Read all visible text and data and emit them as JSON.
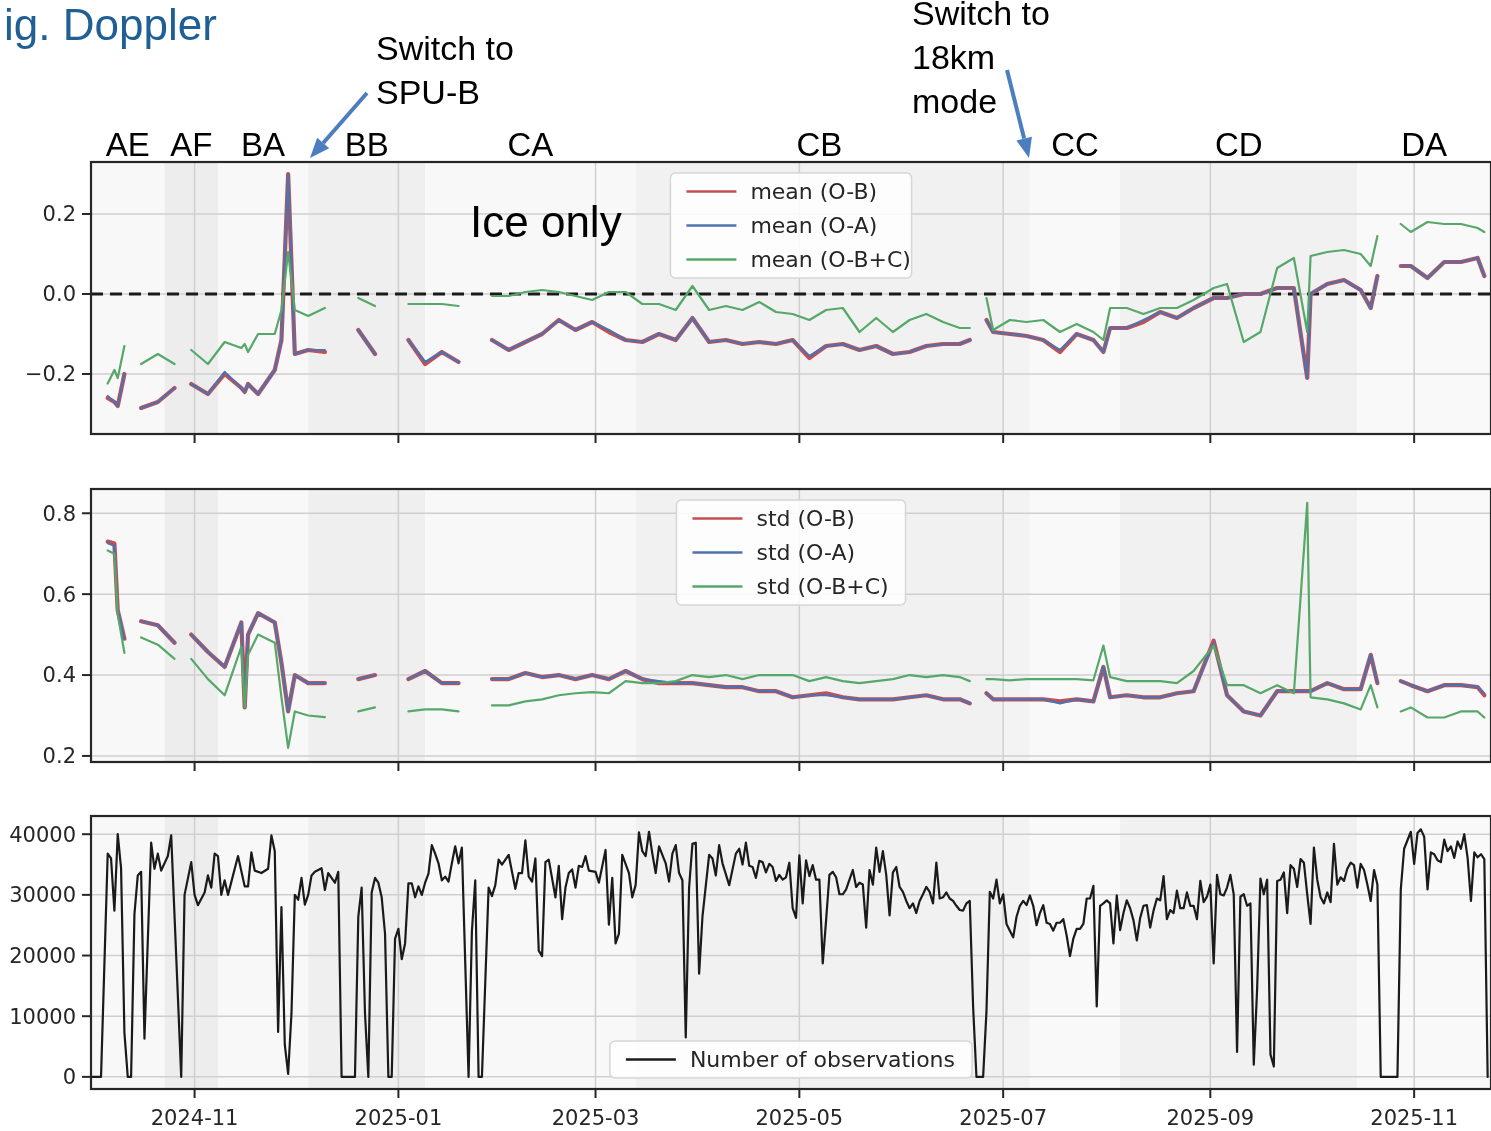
{
  "chart_data": [
    {
      "type": "line",
      "title": "ig. Doppler",
      "grid": true,
      "legend": "top",
      "tick_labels": "y",
      "line_style": "solid",
      "xlim": [
        "2024-10-01",
        "2025-11-24"
      ],
      "ylim": [
        -0.35,
        0.33
      ],
      "xticks": [
        {
          "value": "2024-11-01",
          "label": null
        },
        {
          "value": "2025-01-01",
          "label": null
        },
        {
          "value": "2025-03-01",
          "label": null
        },
        {
          "value": "2025-05-01",
          "label": null
        },
        {
          "value": "2025-07-01",
          "label": null
        },
        {
          "value": "2025-09-01",
          "label": null
        },
        {
          "value": "2025-11-01",
          "label": null
        }
      ],
      "yticks": [
        {
          "value": -0.2,
          "label": "−0.2"
        },
        {
          "value": 0,
          "label": "0.0"
        },
        {
          "value": 0.2,
          "label": "0.2"
        }
      ],
      "ref_lines": [
        {
          "axis": "y",
          "value": 0,
          "color": "#1a1a1a",
          "line_style": "dashed"
        }
      ],
      "bands": [
        {
          "axis": "x",
          "from": "2024-10-01",
          "to": "2024-10-23",
          "label": "AE",
          "color": "#f8f8f8"
        },
        {
          "axis": "x",
          "from": "2024-10-23",
          "to": "2024-11-08",
          "label": "AF",
          "color": "#ededed"
        },
        {
          "axis": "x",
          "from": "2024-11-08",
          "to": "2024-12-05",
          "label": "BA",
          "color": "#f8f8f8"
        },
        {
          "axis": "x",
          "from": "2024-12-05",
          "to": "2025-01-09",
          "label": "BB",
          "color": "#efefef"
        },
        {
          "axis": "x",
          "from": "2025-01-09",
          "to": "2025-03-13",
          "label": "CA",
          "color": "#f8f8f8"
        },
        {
          "axis": "x",
          "from": "2025-03-13",
          "to": "2025-07-01",
          "label": "CB",
          "color": "#f1f1f1"
        },
        {
          "axis": "x",
          "from": "2025-07-01",
          "to": "2025-07-09",
          "color": "#f3f3f3"
        },
        {
          "axis": "x",
          "from": "2025-07-09",
          "to": "2025-08-05",
          "label": "CC",
          "color": "#f9f9f9"
        },
        {
          "axis": "x",
          "from": "2025-08-05",
          "to": "2025-10-15",
          "label": "CD",
          "color": "#f1f1f1"
        },
        {
          "axis": "x",
          "from": "2025-10-15",
          "to": "2025-11-24",
          "label": "DA",
          "color": "#f9f9f9"
        }
      ],
      "annotations": [
        "Switch to SPU-B",
        "Switch to 18km mode",
        "Ice only"
      ],
      "x": [
        "2024-10-06",
        "2024-10-08",
        "2024-10-09",
        "2024-10-11",
        "2024-10-13",
        "2024-10-16",
        "2024-10-21",
        "2024-10-26",
        "2024-10-28",
        "2024-10-31",
        "2024-11-05",
        "2024-11-10",
        "2024-11-15",
        "2024-11-16",
        "2024-11-17",
        "2024-11-20",
        "2024-11-25",
        "2024-11-27",
        "2024-11-29",
        "2024-12-01",
        "2024-12-05",
        "2024-12-10",
        "2024-12-15",
        "2024-12-20",
        "2024-12-25",
        "2024-12-30",
        "2025-01-04",
        "2025-01-09",
        "2025-01-14",
        "2025-01-19",
        "2025-01-24",
        "2025-01-29",
        "2025-02-03",
        "2025-02-08",
        "2025-02-13",
        "2025-02-18",
        "2025-02-23",
        "2025-02-28",
        "2025-03-05",
        "2025-03-10",
        "2025-03-15",
        "2025-03-20",
        "2025-03-25",
        "2025-03-30",
        "2025-04-04",
        "2025-04-09",
        "2025-04-14",
        "2025-04-19",
        "2025-04-24",
        "2025-04-29",
        "2025-05-04",
        "2025-05-09",
        "2025-05-14",
        "2025-05-19",
        "2025-05-24",
        "2025-05-29",
        "2025-06-03",
        "2025-06-08",
        "2025-06-13",
        "2025-06-18",
        "2025-06-21",
        "2025-06-23",
        "2025-06-26",
        "2025-06-28",
        "2025-07-03",
        "2025-07-08",
        "2025-07-13",
        "2025-07-18",
        "2025-07-23",
        "2025-07-28",
        "2025-07-31",
        "2025-08-02",
        "2025-08-07",
        "2025-08-12",
        "2025-08-17",
        "2025-08-22",
        "2025-08-27",
        "2025-09-02",
        "2025-09-06",
        "2025-09-11",
        "2025-09-16",
        "2025-09-21",
        "2025-09-26",
        "2025-09-30",
        "2025-10-01",
        "2025-10-06",
        "2025-10-11",
        "2025-10-16",
        "2025-10-19",
        "2025-10-21",
        "2025-10-25",
        "2025-10-28",
        "2025-10-31",
        "2025-11-05",
        "2025-11-10",
        "2025-11-15",
        "2025-11-20",
        "2025-11-22"
      ],
      "series": [
        {
          "name": "mean (O-B)",
          "color": "#c44e52",
          "values": [
            -0.26,
            -0.27,
            -0.28,
            -0.2,
            null,
            -0.285,
            -0.27,
            -0.235,
            null,
            -0.225,
            -0.25,
            -0.2,
            -0.235,
            -0.245,
            -0.225,
            -0.25,
            -0.19,
            -0.115,
            0.3,
            -0.15,
            -0.14,
            -0.145,
            null,
            -0.09,
            -0.15,
            null,
            -0.115,
            -0.175,
            -0.145,
            -0.17,
            null,
            -0.115,
            -0.14,
            -0.12,
            -0.1,
            -0.065,
            -0.09,
            -0.07,
            -0.095,
            -0.115,
            -0.12,
            -0.1,
            -0.115,
            -0.06,
            -0.12,
            -0.115,
            -0.125,
            -0.12,
            -0.125,
            -0.115,
            -0.16,
            -0.13,
            -0.125,
            -0.14,
            -0.13,
            -0.15,
            -0.145,
            -0.13,
            -0.125,
            -0.125,
            -0.115,
            null,
            -0.065,
            -0.095,
            -0.1,
            -0.105,
            -0.115,
            -0.145,
            -0.1,
            -0.115,
            -0.145,
            -0.085,
            -0.085,
            -0.07,
            -0.045,
            -0.06,
            -0.035,
            -0.01,
            -0.01,
            0.0,
            0.0,
            0.015,
            0.015,
            -0.21,
            0.0,
            0.025,
            0.035,
            0.01,
            -0.035,
            0.045,
            null,
            0.07,
            0.07,
            0.04,
            0.08,
            0.08,
            0.09,
            0.045
          ]
        },
        {
          "name": "mean (O-A)",
          "color": "#4c72b0",
          "values": [
            -0.255,
            -0.27,
            -0.28,
            -0.2,
            null,
            -0.285,
            -0.27,
            -0.235,
            null,
            -0.225,
            -0.25,
            -0.195,
            -0.235,
            -0.245,
            -0.225,
            -0.25,
            -0.19,
            -0.115,
            0.3,
            -0.15,
            -0.14,
            -0.14,
            null,
            -0.09,
            -0.15,
            null,
            -0.115,
            -0.17,
            -0.145,
            -0.17,
            null,
            -0.115,
            -0.14,
            -0.12,
            -0.1,
            -0.065,
            -0.09,
            -0.07,
            -0.09,
            -0.115,
            -0.12,
            -0.1,
            -0.115,
            -0.06,
            -0.12,
            -0.115,
            -0.125,
            -0.12,
            -0.125,
            -0.115,
            -0.155,
            -0.13,
            -0.125,
            -0.14,
            -0.13,
            -0.15,
            -0.145,
            -0.13,
            -0.125,
            -0.125,
            -0.115,
            null,
            -0.065,
            -0.095,
            -0.1,
            -0.105,
            -0.115,
            -0.14,
            -0.1,
            -0.115,
            -0.145,
            -0.085,
            -0.085,
            -0.065,
            -0.045,
            -0.06,
            -0.035,
            -0.01,
            -0.01,
            0.0,
            0.0,
            0.015,
            0.015,
            -0.21,
            0.0,
            0.025,
            0.035,
            0.01,
            -0.035,
            0.045,
            null,
            0.07,
            0.07,
            0.04,
            0.08,
            0.08,
            0.09,
            0.045
          ]
        },
        {
          "name": "mean (O-B+C)",
          "color": "#55a868",
          "values": [
            -0.224,
            -0.19,
            -0.21,
            -0.13,
            null,
            -0.175,
            -0.15,
            -0.175,
            null,
            -0.14,
            -0.175,
            -0.12,
            -0.135,
            -0.125,
            -0.145,
            -0.1,
            -0.1,
            -0.04,
            0.105,
            -0.04,
            -0.055,
            -0.035,
            null,
            -0.01,
            -0.03,
            null,
            -0.025,
            -0.025,
            -0.025,
            -0.03,
            null,
            -0.005,
            -0.005,
            0.005,
            0.01,
            0.005,
            -0.005,
            -0.015,
            0.005,
            0.005,
            -0.025,
            -0.025,
            -0.04,
            0.02,
            -0.04,
            -0.03,
            -0.04,
            -0.02,
            -0.045,
            -0.05,
            -0.065,
            -0.04,
            -0.035,
            -0.095,
            -0.06,
            -0.095,
            -0.065,
            -0.05,
            -0.07,
            -0.085,
            -0.085,
            null,
            -0.01,
            -0.09,
            -0.065,
            -0.07,
            -0.065,
            -0.095,
            -0.075,
            -0.095,
            -0.115,
            -0.035,
            -0.035,
            -0.05,
            -0.035,
            -0.035,
            -0.015,
            0.015,
            0.025,
            -0.12,
            -0.095,
            0.065,
            0.09,
            -0.095,
            0.095,
            0.105,
            0.11,
            0.1,
            0.07,
            0.145,
            null,
            0.175,
            0.155,
            0.18,
            0.175,
            0.175,
            0.165,
            0.155
          ]
        }
      ]
    },
    {
      "type": "line",
      "grid": true,
      "legend": "top",
      "tick_labels": "y",
      "line_style": "solid",
      "xlim": [
        "2024-10-01",
        "2025-11-24"
      ],
      "ylim": [
        0.185,
        0.86
      ],
      "xticks": [
        {
          "value": "2024-11-01",
          "label": null
        },
        {
          "value": "2025-01-01",
          "label": null
        },
        {
          "value": "2025-03-01",
          "label": null
        },
        {
          "value": "2025-05-01",
          "label": null
        },
        {
          "value": "2025-07-01",
          "label": null
        },
        {
          "value": "2025-09-01",
          "label": null
        },
        {
          "value": "2025-11-01",
          "label": null
        }
      ],
      "yticks": [
        0.2,
        0.4,
        0.6,
        0.8
      ],
      "bands": [
        {
          "axis": "x",
          "from": "2024-10-01",
          "to": "2024-10-23",
          "color": "#f8f8f8"
        },
        {
          "axis": "x",
          "from": "2024-10-23",
          "to": "2024-11-08",
          "color": "#ededed"
        },
        {
          "axis": "x",
          "from": "2024-11-08",
          "to": "2024-12-05",
          "color": "#f8f8f8"
        },
        {
          "axis": "x",
          "from": "2024-12-05",
          "to": "2025-01-09",
          "color": "#efefef"
        },
        {
          "axis": "x",
          "from": "2025-01-09",
          "to": "2025-03-13",
          "color": "#f8f8f8"
        },
        {
          "axis": "x",
          "from": "2025-03-13",
          "to": "2025-07-01",
          "color": "#f1f1f1"
        },
        {
          "axis": "x",
          "from": "2025-07-01",
          "to": "2025-07-09",
          "color": "#f3f3f3"
        },
        {
          "axis": "x",
          "from": "2025-07-09",
          "to": "2025-08-05",
          "color": "#f9f9f9"
        },
        {
          "axis": "x",
          "from": "2025-08-05",
          "to": "2025-10-15",
          "color": "#f1f1f1"
        },
        {
          "axis": "x",
          "from": "2025-10-15",
          "to": "2025-11-24",
          "color": "#f9f9f9"
        }
      ],
      "x": [
        "2024-10-06",
        "2024-10-08",
        "2024-10-09",
        "2024-10-11",
        "2024-10-13",
        "2024-10-16",
        "2024-10-21",
        "2024-10-26",
        "2024-10-28",
        "2024-10-31",
        "2024-11-05",
        "2024-11-10",
        "2024-11-15",
        "2024-11-16",
        "2024-11-17",
        "2024-11-20",
        "2024-11-25",
        "2024-11-27",
        "2024-11-29",
        "2024-12-01",
        "2024-12-05",
        "2024-12-10",
        "2024-12-15",
        "2024-12-20",
        "2024-12-25",
        "2024-12-30",
        "2025-01-04",
        "2025-01-09",
        "2025-01-14",
        "2025-01-19",
        "2025-01-24",
        "2025-01-29",
        "2025-02-03",
        "2025-02-08",
        "2025-02-13",
        "2025-02-18",
        "2025-02-23",
        "2025-02-28",
        "2025-03-05",
        "2025-03-10",
        "2025-03-15",
        "2025-03-20",
        "2025-03-25",
        "2025-03-30",
        "2025-04-04",
        "2025-04-09",
        "2025-04-14",
        "2025-04-19",
        "2025-04-24",
        "2025-04-29",
        "2025-05-04",
        "2025-05-09",
        "2025-05-14",
        "2025-05-19",
        "2025-05-24",
        "2025-05-29",
        "2025-06-03",
        "2025-06-08",
        "2025-06-13",
        "2025-06-18",
        "2025-06-21",
        "2025-06-23",
        "2025-06-26",
        "2025-06-28",
        "2025-07-03",
        "2025-07-08",
        "2025-07-13",
        "2025-07-18",
        "2025-07-23",
        "2025-07-28",
        "2025-07-31",
        "2025-08-02",
        "2025-08-07",
        "2025-08-12",
        "2025-08-17",
        "2025-08-22",
        "2025-08-27",
        "2025-09-02",
        "2025-09-06",
        "2025-09-11",
        "2025-09-16",
        "2025-09-21",
        "2025-09-26",
        "2025-09-30",
        "2025-10-01",
        "2025-10-06",
        "2025-10-11",
        "2025-10-16",
        "2025-10-19",
        "2025-10-21",
        "2025-10-25",
        "2025-10-28",
        "2025-10-31",
        "2025-11-05",
        "2025-11-10",
        "2025-11-15",
        "2025-11-20",
        "2025-11-22"
      ],
      "series": [
        {
          "name": "std (O-B)",
          "color": "#c44e52",
          "values": [
            0.73,
            0.725,
            0.56,
            0.49,
            null,
            0.533,
            0.523,
            0.48,
            null,
            0.5,
            0.457,
            0.42,
            0.53,
            0.32,
            0.5,
            0.553,
            0.53,
            0.43,
            0.31,
            0.4,
            0.38,
            0.38,
            null,
            0.39,
            0.4,
            null,
            0.39,
            0.41,
            0.38,
            0.38,
            null,
            0.39,
            0.39,
            0.405,
            0.395,
            0.4,
            0.39,
            0.4,
            0.39,
            0.41,
            0.39,
            0.38,
            0.38,
            0.38,
            0.375,
            0.37,
            0.37,
            0.36,
            0.36,
            0.345,
            0.35,
            0.355,
            0.345,
            0.34,
            0.34,
            0.34,
            0.345,
            0.35,
            0.34,
            0.34,
            0.33,
            null,
            0.355,
            0.34,
            0.34,
            0.34,
            0.34,
            0.335,
            0.34,
            0.335,
            0.42,
            0.345,
            0.35,
            0.345,
            0.345,
            0.355,
            0.36,
            0.485,
            0.35,
            0.31,
            0.3,
            0.36,
            0.36,
            0.36,
            0.36,
            0.38,
            0.365,
            0.365,
            0.45,
            0.38,
            null,
            0.385,
            0.375,
            0.36,
            0.375,
            0.375,
            0.37,
            0.35
          ]
        },
        {
          "name": "std (O-A)",
          "color": "#4c72b0",
          "values": [
            0.726,
            0.72,
            0.56,
            0.49,
            null,
            0.533,
            0.523,
            0.48,
            null,
            0.5,
            0.457,
            0.42,
            0.53,
            0.32,
            0.5,
            0.553,
            0.53,
            0.43,
            0.31,
            0.4,
            0.38,
            0.38,
            null,
            0.39,
            0.4,
            null,
            0.39,
            0.41,
            0.38,
            0.38,
            null,
            0.39,
            0.39,
            0.405,
            0.395,
            0.4,
            0.39,
            0.4,
            0.39,
            0.41,
            0.39,
            0.385,
            0.38,
            0.38,
            0.375,
            0.37,
            0.37,
            0.36,
            0.36,
            0.345,
            0.35,
            0.35,
            0.345,
            0.34,
            0.34,
            0.34,
            0.345,
            0.35,
            0.34,
            0.34,
            0.33,
            null,
            0.355,
            0.34,
            0.34,
            0.34,
            0.34,
            0.33,
            0.34,
            0.335,
            0.42,
            0.345,
            0.35,
            0.345,
            0.345,
            0.355,
            0.36,
            0.48,
            0.35,
            0.31,
            0.3,
            0.36,
            0.36,
            0.36,
            0.36,
            0.38,
            0.365,
            0.365,
            0.45,
            0.38,
            null,
            0.385,
            0.375,
            0.36,
            0.375,
            0.375,
            0.37,
            0.355
          ]
        },
        {
          "name": "std (O-B+C)",
          "color": "#55a868",
          "values": [
            0.708,
            0.7,
            0.55,
            0.455,
            null,
            0.493,
            0.475,
            0.44,
            null,
            0.44,
            0.39,
            0.35,
            0.47,
            0.32,
            0.45,
            0.5,
            0.48,
            0.345,
            0.22,
            0.31,
            0.3,
            0.296,
            null,
            0.31,
            0.32,
            null,
            0.31,
            0.315,
            0.315,
            0.31,
            null,
            0.325,
            0.325,
            0.335,
            0.34,
            0.35,
            0.355,
            0.358,
            0.355,
            0.385,
            0.38,
            0.38,
            0.385,
            0.4,
            0.395,
            0.4,
            0.39,
            0.4,
            0.4,
            0.4,
            0.385,
            0.395,
            0.385,
            0.38,
            0.385,
            0.39,
            0.4,
            0.395,
            0.4,
            0.395,
            0.385,
            null,
            0.39,
            0.39,
            0.387,
            0.39,
            0.39,
            0.39,
            0.39,
            0.387,
            0.473,
            0.395,
            0.385,
            0.385,
            0.385,
            0.38,
            0.41,
            0.473,
            0.375,
            0.375,
            0.355,
            0.375,
            0.355,
            0.826,
            0.345,
            0.34,
            0.33,
            0.315,
            0.375,
            0.32,
            null,
            0.31,
            0.32,
            0.295,
            0.295,
            0.31,
            0.31,
            0.295
          ]
        }
      ]
    },
    {
      "type": "line",
      "grid": true,
      "legend": "bottom",
      "line_style": "solid",
      "xlim": [
        "2024-10-01",
        "2025-11-24"
      ],
      "ylim": [
        -2000,
        43000
      ],
      "xticks": [
        {
          "value": "2024-11-01",
          "label": "2024-11"
        },
        {
          "value": "2025-01-01",
          "label": "2025-01"
        },
        {
          "value": "2025-03-01",
          "label": "2025-03"
        },
        {
          "value": "2025-05-01",
          "label": "2025-05"
        },
        {
          "value": "2025-07-01",
          "label": "2025-07"
        },
        {
          "value": "2025-09-01",
          "label": "2025-09"
        },
        {
          "value": "2025-11-01",
          "label": "2025-11"
        }
      ],
      "yticks": [
        0,
        10000,
        20000,
        30000,
        40000
      ],
      "bands": [
        {
          "axis": "x",
          "from": "2024-10-01",
          "to": "2024-10-23",
          "color": "#f8f8f8"
        },
        {
          "axis": "x",
          "from": "2024-10-23",
          "to": "2024-11-08",
          "color": "#ededed"
        },
        {
          "axis": "x",
          "from": "2024-11-08",
          "to": "2024-12-05",
          "color": "#f8f8f8"
        },
        {
          "axis": "x",
          "from": "2024-12-05",
          "to": "2025-01-09",
          "color": "#efefef"
        },
        {
          "axis": "x",
          "from": "2025-01-09",
          "to": "2025-03-13",
          "color": "#f8f8f8"
        },
        {
          "axis": "x",
          "from": "2025-03-13",
          "to": "2025-07-01",
          "color": "#f1f1f1"
        },
        {
          "axis": "x",
          "from": "2025-07-01",
          "to": "2025-07-09",
          "color": "#f3f3f3"
        },
        {
          "axis": "x",
          "from": "2025-07-09",
          "to": "2025-08-05",
          "color": "#f9f9f9"
        },
        {
          "axis": "x",
          "from": "2025-08-05",
          "to": "2025-10-15",
          "color": "#f1f1f1"
        },
        {
          "axis": "x",
          "from": "2025-10-15",
          "to": "2025-11-24",
          "color": "#f9f9f9"
        }
      ],
      "x": [
        "2024-10-01",
        "2024-10-04",
        "2024-10-06",
        "2024-10-07",
        "2024-10-08",
        "2024-10-09",
        "2024-10-10",
        "2024-10-11",
        "2024-10-12",
        "2024-10-13",
        "2024-10-14",
        "2024-10-15",
        "2024-10-16",
        "2024-10-17",
        "2024-10-19",
        "2024-10-20",
        "2024-10-21",
        "2024-10-22",
        "2024-10-24",
        "2024-10-25",
        "2024-10-28",
        "2024-10-29",
        "2024-10-31",
        "2024-11-01",
        "2024-11-02",
        "2024-11-04",
        "2024-11-05",
        "2024-11-06",
        "2024-11-07",
        "2024-11-08",
        "2024-11-09",
        "2024-11-10",
        "2024-11-11",
        "2024-11-14",
        "2024-11-16",
        "2024-11-17",
        "2024-11-18",
        "2024-11-19",
        "2024-11-21",
        "2024-11-23",
        "2024-11-24",
        "2024-11-25",
        "2024-11-26",
        "2024-11-27",
        "2024-11-28",
        "2024-11-29",
        "2024-11-30",
        "2024-12-01",
        "2024-12-02",
        "2024-12-03",
        "2024-12-04",
        "2024-12-05",
        "2024-12-06",
        "2024-12-07",
        "2024-12-09",
        "2024-12-10",
        "2024-12-11",
        "2024-12-13",
        "2024-12-14",
        "2024-12-15",
        "2024-12-19",
        "2024-12-20",
        "2024-12-21",
        "2024-12-22",
        "2024-12-23",
        "2024-12-24",
        "2024-12-25",
        "2024-12-26",
        "2024-12-27",
        "2024-12-28",
        "2024-12-29",
        "2024-12-30",
        "2024-12-31",
        "2025-01-01",
        "2025-01-02",
        "2025-01-03",
        "2025-01-04",
        "2025-01-05",
        "2025-01-06",
        "2025-01-07",
        "2025-01-08",
        "2025-01-09",
        "2025-01-10",
        "2025-01-11",
        "2025-01-12",
        "2025-01-13",
        "2025-01-14",
        "2025-01-15",
        "2025-01-16",
        "2025-01-17",
        "2025-01-18",
        "2025-01-19",
        "2025-01-20",
        "2025-01-22",
        "2025-01-23",
        "2025-01-24",
        "2025-01-25",
        "2025-01-26",
        "2025-01-28",
        "2025-01-29",
        "2025-01-30",
        "2025-01-31",
        "2025-02-01",
        "2025-02-03",
        "2025-02-05",
        "2025-02-06",
        "2025-02-07",
        "2025-02-08",
        "2025-02-09",
        "2025-02-10",
        "2025-02-11",
        "2025-02-12",
        "2025-02-13",
        "2025-02-14",
        "2025-02-15",
        "2025-02-17",
        "2025-02-18",
        "2025-02-19",
        "2025-02-20",
        "2025-02-21",
        "2025-02-22",
        "2025-02-23",
        "2025-02-24",
        "2025-02-25",
        "2025-02-26",
        "2025-02-27",
        "2025-03-01",
        "2025-03-02",
        "2025-03-04",
        "2025-03-05",
        "2025-03-06",
        "2025-03-07",
        "2025-03-08",
        "2025-03-09",
        "2025-03-11",
        "2025-03-12",
        "2025-03-13",
        "2025-03-14",
        "2025-03-15",
        "2025-03-16",
        "2025-03-17",
        "2025-03-18",
        "2025-03-19",
        "2025-03-20",
        "2025-03-22",
        "2025-03-23",
        "2025-03-24",
        "2025-03-25",
        "2025-03-26",
        "2025-03-27",
        "2025-03-28",
        "2025-03-29",
        "2025-03-30",
        "2025-03-31",
        "2025-04-01",
        "2025-04-02",
        "2025-04-04",
        "2025-04-05",
        "2025-04-06",
        "2025-04-07",
        "2025-04-08",
        "2025-04-10",
        "2025-04-12",
        "2025-04-13",
        "2025-04-14",
        "2025-04-15",
        "2025-04-16",
        "2025-04-17",
        "2025-04-18",
        "2025-04-19",
        "2025-04-20",
        "2025-04-21",
        "2025-04-22",
        "2025-04-23",
        "2025-04-24",
        "2025-04-25",
        "2025-04-26",
        "2025-04-27",
        "2025-04-28",
        "2025-04-29",
        "2025-04-30",
        "2025-05-01",
        "2025-05-02",
        "2025-05-03",
        "2025-05-04",
        "2025-05-05",
        "2025-05-06",
        "2025-05-07",
        "2025-05-08",
        "2025-05-09",
        "2025-05-10",
        "2025-05-11",
        "2025-05-12",
        "2025-05-13",
        "2025-05-14",
        "2025-05-15",
        "2025-05-16",
        "2025-05-17",
        "2025-05-18",
        "2025-05-19",
        "2025-05-20",
        "2025-05-21",
        "2025-05-22",
        "2025-05-23",
        "2025-05-24",
        "2025-05-25",
        "2025-05-26",
        "2025-05-27",
        "2025-05-28",
        "2025-05-29",
        "2025-05-30",
        "2025-05-31",
        "2025-06-01",
        "2025-06-02",
        "2025-06-03",
        "2025-06-04",
        "2025-06-05",
        "2025-06-06",
        "2025-06-07",
        "2025-06-08",
        "2025-06-09",
        "2025-06-10",
        "2025-06-11",
        "2025-06-12",
        "2025-06-13",
        "2025-06-14",
        "2025-06-15",
        "2025-06-16",
        "2025-06-17",
        "2025-06-18",
        "2025-06-19",
        "2025-06-20",
        "2025-06-21",
        "2025-06-22",
        "2025-06-23",
        "2025-06-25",
        "2025-06-26",
        "2025-06-27",
        "2025-06-28",
        "2025-06-29",
        "2025-06-30",
        "2025-07-01",
        "2025-07-02",
        "2025-07-03",
        "2025-07-04",
        "2025-07-05",
        "2025-07-06",
        "2025-07-07",
        "2025-07-08",
        "2025-07-09",
        "2025-07-10",
        "2025-07-11",
        "2025-07-12",
        "2025-07-13",
        "2025-07-14",
        "2025-07-15",
        "2025-07-16",
        "2025-07-17",
        "2025-07-18",
        "2025-07-19",
        "2025-07-20",
        "2025-07-21",
        "2025-07-22",
        "2025-07-23",
        "2025-07-24",
        "2025-07-25",
        "2025-07-26",
        "2025-07-27",
        "2025-07-28",
        "2025-07-29",
        "2025-07-30",
        "2025-07-31",
        "2025-08-01",
        "2025-08-02",
        "2025-08-03",
        "2025-08-04",
        "2025-08-05",
        "2025-08-06",
        "2025-08-07",
        "2025-08-08",
        "2025-08-09",
        "2025-08-10",
        "2025-08-11",
        "2025-08-12",
        "2025-08-13",
        "2025-08-14",
        "2025-08-15",
        "2025-08-16",
        "2025-08-17",
        "2025-08-18",
        "2025-08-19",
        "2025-08-20",
        "2025-08-21",
        "2025-08-22",
        "2025-08-23",
        "2025-08-24",
        "2025-08-25",
        "2025-08-26",
        "2025-08-27",
        "2025-08-28",
        "2025-08-29",
        "2025-08-30",
        "2025-08-31",
        "2025-09-01",
        "2025-09-02",
        "2025-09-03",
        "2025-09-04",
        "2025-09-05",
        "2025-09-06",
        "2025-09-07",
        "2025-09-08",
        "2025-09-09",
        "2025-09-10",
        "2025-09-11",
        "2025-09-12",
        "2025-09-13",
        "2025-09-14",
        "2025-09-15",
        "2025-09-16",
        "2025-09-17",
        "2025-09-18",
        "2025-09-19",
        "2025-09-20",
        "2025-09-21",
        "2025-09-22",
        "2025-09-23",
        "2025-09-24",
        "2025-09-25",
        "2025-09-26",
        "2025-09-27",
        "2025-09-28",
        "2025-09-29",
        "2025-09-30",
        "2025-10-01",
        "2025-10-02",
        "2025-10-03",
        "2025-10-04",
        "2025-10-05",
        "2025-10-06",
        "2025-10-07",
        "2025-10-08",
        "2025-10-09",
        "2025-10-10",
        "2025-10-11",
        "2025-10-12",
        "2025-10-13",
        "2025-10-14",
        "2025-10-15",
        "2025-10-16",
        "2025-10-17",
        "2025-10-18",
        "2025-10-19",
        "2025-10-20",
        "2025-10-21",
        "2025-10-22",
        "2025-10-27",
        "2025-10-28",
        "2025-10-29",
        "2025-10-31",
        "2025-11-01",
        "2025-11-02",
        "2025-11-03",
        "2025-11-04",
        "2025-11-05",
        "2025-11-06",
        "2025-11-07",
        "2025-11-08",
        "2025-11-09",
        "2025-11-10",
        "2025-11-11",
        "2025-11-12",
        "2025-11-13",
        "2025-11-14",
        "2025-11-15",
        "2025-11-16",
        "2025-11-17",
        "2025-11-18",
        "2025-11-19",
        "2025-11-20",
        "2025-11-21",
        "2025-11-22",
        "2025-11-23"
      ],
      "series": [
        {
          "name": "Number of observations",
          "color": "#1a1a1a",
          "values": [
            0,
            0,
            36800,
            36000,
            27400,
            40000,
            34400,
            7300,
            0,
            0,
            26800,
            33200,
            33800,
            6300,
            38600,
            34300,
            36800,
            34000,
            36400,
            39800,
            0,
            30000,
            35400,
            30000,
            28300,
            30400,
            33200,
            31200,
            36800,
            36400,
            30000,
            32400,
            30000,
            36400,
            31400,
            31400,
            37000,
            34000,
            33600,
            34300,
            39800,
            37200,
            7400,
            28000,
            5300,
            500,
            10500,
            30000,
            29200,
            32800,
            28400,
            30000,
            33200,
            33800,
            34400,
            30800,
            33600,
            32000,
            33800,
            0,
            0,
            26400,
            31200,
            10500,
            0,
            30400,
            32800,
            32000,
            29600,
            23600,
            0,
            0,
            22800,
            24400,
            19400,
            22000,
            31900,
            31900,
            29600,
            31400,
            30000,
            32000,
            33500,
            38200,
            36800,
            35200,
            32400,
            33000,
            32200,
            35200,
            38000,
            35200,
            37800,
            0,
            24000,
            32400,
            0,
            0,
            31200,
            29800,
            31600,
            35800,
            35000,
            36600,
            31000,
            33600,
            33600,
            39000,
            33000,
            32200,
            36000,
            20800,
            19900,
            35400,
            35800,
            29600,
            34800,
            26000,
            31200,
            33600,
            34200,
            31200,
            34800,
            34600,
            36400,
            34000,
            33800,
            32000,
            37400,
            25100,
            32800,
            22000,
            23600,
            36600,
            33600,
            29600,
            31600,
            40300,
            37200,
            36400,
            40400,
            36800,
            33600,
            38000,
            35200,
            32200,
            36800,
            38200,
            33600,
            32400,
            6500,
            31200,
            38400,
            38600,
            17000,
            26400,
            36600,
            36000,
            33200,
            38200,
            35200,
            31600,
            36800,
            37600,
            35000,
            38600,
            34800,
            34600,
            32800,
            35600,
            35400,
            33700,
            35100,
            34600,
            32300,
            33300,
            32500,
            32900,
            35300,
            27800,
            26200,
            36500,
            28600,
            35700,
            33100,
            34900,
            32500,
            32500,
            18700,
            25800,
            33300,
            33800,
            32900,
            30100,
            30100,
            30900,
            32500,
            34100,
            31300,
            32000,
            31700,
            24600,
            34100,
            31700,
            37800,
            33800,
            37200,
            33300,
            26600,
            33700,
            34600,
            31300,
            30500,
            29000,
            27800,
            28600,
            27000,
            29000,
            30100,
            31300,
            30500,
            28600,
            35300,
            29400,
            29600,
            30400,
            29400,
            29000,
            28200,
            27500,
            27400,
            28600,
            29000,
            11600,
            0,
            0,
            10800,
            30500,
            29400,
            32500,
            28600,
            30100,
            25200,
            24100,
            23000,
            26400,
            28200,
            29000,
            28300,
            29900,
            28200,
            25000,
            27000,
            28300,
            25400,
            25200,
            24100,
            25400,
            25400,
            26000,
            23300,
            19900,
            22800,
            24400,
            24400,
            25200,
            29400,
            29400,
            31500,
            11600,
            28200,
            28600,
            29100,
            28600,
            22000,
            29900,
            24200,
            27000,
            29100,
            27800,
            25800,
            22500,
            26200,
            28200,
            28300,
            24600,
            27400,
            29400,
            29100,
            33100,
            26000,
            27500,
            27000,
            30700,
            27800,
            27800,
            30400,
            28200,
            28200,
            26000,
            32300,
            28800,
            29700,
            31700,
            18700,
            33300,
            30100,
            29900,
            31200,
            33300,
            30100,
            4100,
            29700,
            30100,
            28200,
            28600,
            2000,
            14400,
            32700,
            30100,
            32500,
            3700,
            1700,
            32300,
            32500,
            33700,
            27000,
            34900,
            34300,
            31300,
            35900,
            35300,
            30100,
            25200,
            37800,
            32500,
            29600,
            28600,
            30400,
            28800,
            38400,
            31700,
            32900,
            32300,
            34300,
            35300,
            34900,
            31200,
            35100,
            34100,
            31700,
            29000,
            34100,
            31700,
            0,
            0,
            30900,
            37600,
            40400,
            35100,
            40200,
            40800,
            39600,
            30900,
            37000,
            36700,
            35700,
            35400,
            39100,
            37200,
            38000,
            36100,
            38800,
            37600,
            40000,
            36100,
            29000,
            37000,
            36200,
            36700,
            35900,
            0
          ]
        }
      ]
    }
  ]
}
